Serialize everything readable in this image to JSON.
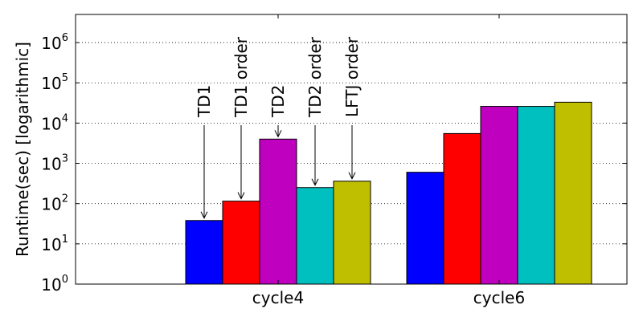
{
  "chart_data": {
    "type": "bar",
    "title": "",
    "xlabel": "",
    "ylabel": "Runtime(sec) [logarithmic]",
    "yscale": "log",
    "ylim": [
      1,
      5000000
    ],
    "yticks": [
      {
        "value": 1,
        "base": "10",
        "exp": "0"
      },
      {
        "value": 10,
        "base": "10",
        "exp": "1"
      },
      {
        "value": 100,
        "base": "10",
        "exp": "2"
      },
      {
        "value": 1000,
        "base": "10",
        "exp": "3"
      },
      {
        "value": 10000,
        "base": "10",
        "exp": "4"
      },
      {
        "value": 100000,
        "base": "10",
        "exp": "5"
      },
      {
        "value": 1000000,
        "base": "10",
        "exp": "6"
      }
    ],
    "grid": "horizontal dotted",
    "categories": [
      "cycle4",
      "cycle6"
    ],
    "series": [
      {
        "name": "TD1",
        "color": "#0000ff",
        "values": [
          38,
          600
        ]
      },
      {
        "name": "TD1 order",
        "color": "#ff0000",
        "values": [
          115,
          5500
        ]
      },
      {
        "name": "TD2",
        "color": "#bf00bf",
        "values": [
          4000,
          26000
        ]
      },
      {
        "name": "TD2 order",
        "color": "#00bfbf",
        "values": [
          250,
          26000
        ]
      },
      {
        "name": "LFTJ order",
        "color": "#bfbf00",
        "values": [
          360,
          33000
        ]
      }
    ],
    "annotations": [
      {
        "text": "TD1",
        "series": 0,
        "category": 0
      },
      {
        "text": "TD1 order",
        "series": 1,
        "category": 0
      },
      {
        "text": "TD2",
        "series": 2,
        "category": 0
      },
      {
        "text": "TD2 order",
        "series": 3,
        "category": 0
      },
      {
        "text": "LFTJ order",
        "series": 4,
        "category": 0
      }
    ]
  }
}
